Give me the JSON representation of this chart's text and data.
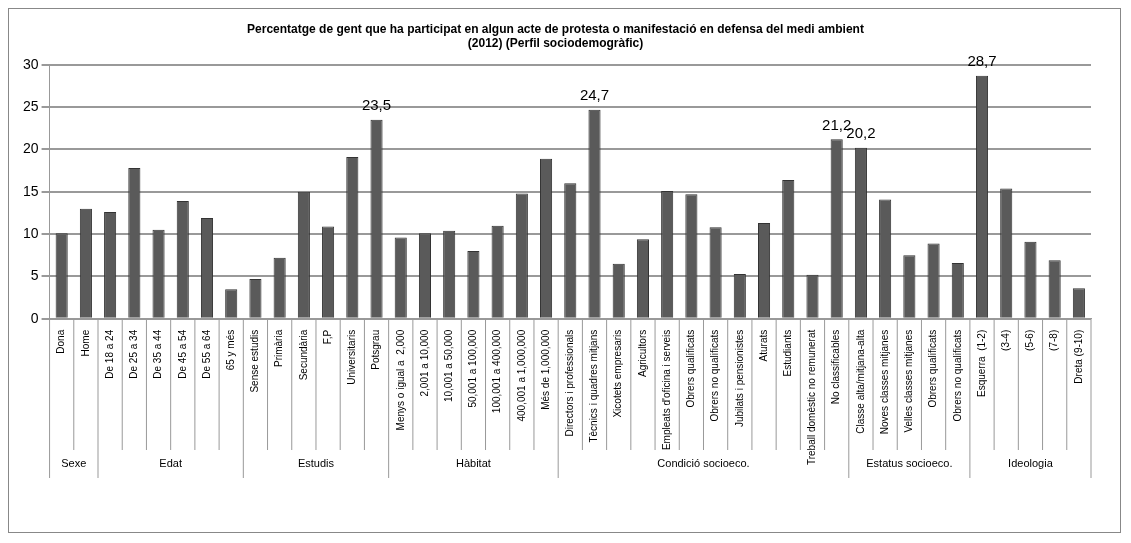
{
  "chart_data": {
    "type": "bar",
    "title": "Percentatge de gent que ha participat en algun acte de protesta o manifestació en defensa del medi ambient\n(2012) (Perfil sociodemogràfic)",
    "categories": [
      "Dona",
      "Home",
      "De 18 a 24",
      "De 25 a 34",
      "De 35 a 44",
      "De 45 a 54",
      "De 55 a 64",
      "65 y més",
      "Sense estudis",
      "Primària",
      "Secundària",
      "F,P",
      "Universitaris",
      "Potsgrau",
      "Menys o igual a  2,000",
      "2,001 a 10,000",
      "10,001 a 50,000",
      "50,001 a 100,000",
      "100,001 a 400,000",
      "400,001 a 1,000,000",
      "Més de 1,000,000",
      "Directors i professionals",
      "Tècnics i quadres mitjans",
      "Xicotets empresaris",
      "Agricultors",
      "Empleats d'oficina i serveis",
      "Obrers qualificats",
      "Obrers no qualificats",
      "Jubilats i pensionistes",
      "Aturats",
      "Estudiants",
      "Treball domèstic no remunerat",
      "No classificables",
      "Classe alta/mitjana-alta",
      "Noves classes mitjanes",
      "Velles classes mitjanes",
      "Obrers qualificats",
      "Obrers no qualificats",
      "Esquerra  (1-2)",
      "(3-4)",
      "(5-6)",
      "(7-8)",
      "Dreta (9-10)"
    ],
    "values": [
      10.1,
      13,
      12.6,
      17.8,
      10.5,
      13.9,
      11.9,
      3.5,
      4.7,
      7.2,
      15,
      10.9,
      19.1,
      23.5,
      9.6,
      10.1,
      10.4,
      8,
      11,
      14.8,
      18.9,
      16,
      24.7,
      6.5,
      9.4,
      15.1,
      14.7,
      10.8,
      5.3,
      11.3,
      16.4,
      5.2,
      21.2,
      20.2,
      14.1,
      7.5,
      8.9,
      6.6,
      28.7,
      15.4,
      9.1,
      6.9,
      3.6
    ],
    "value_labels": [
      null,
      null,
      null,
      null,
      null,
      null,
      null,
      null,
      null,
      null,
      null,
      null,
      null,
      "23,5",
      null,
      null,
      null,
      null,
      null,
      null,
      null,
      null,
      "24,7",
      null,
      null,
      null,
      null,
      null,
      null,
      null,
      null,
      null,
      "21,2",
      "20,2",
      null,
      null,
      null,
      null,
      "28,7",
      null,
      null,
      null,
      null
    ],
    "color": "#5a5a5a",
    "ylim": [
      0,
      30
    ],
    "yticks": [
      0,
      5,
      10,
      15,
      20,
      25,
      30
    ],
    "grid": "y",
    "annotations": [
      "Sexe",
      "Edat",
      "Estudis",
      "Hàbitat",
      "Condició socioeco.",
      "Estatus socioeco.",
      "Ideologia"
    ]
  }
}
